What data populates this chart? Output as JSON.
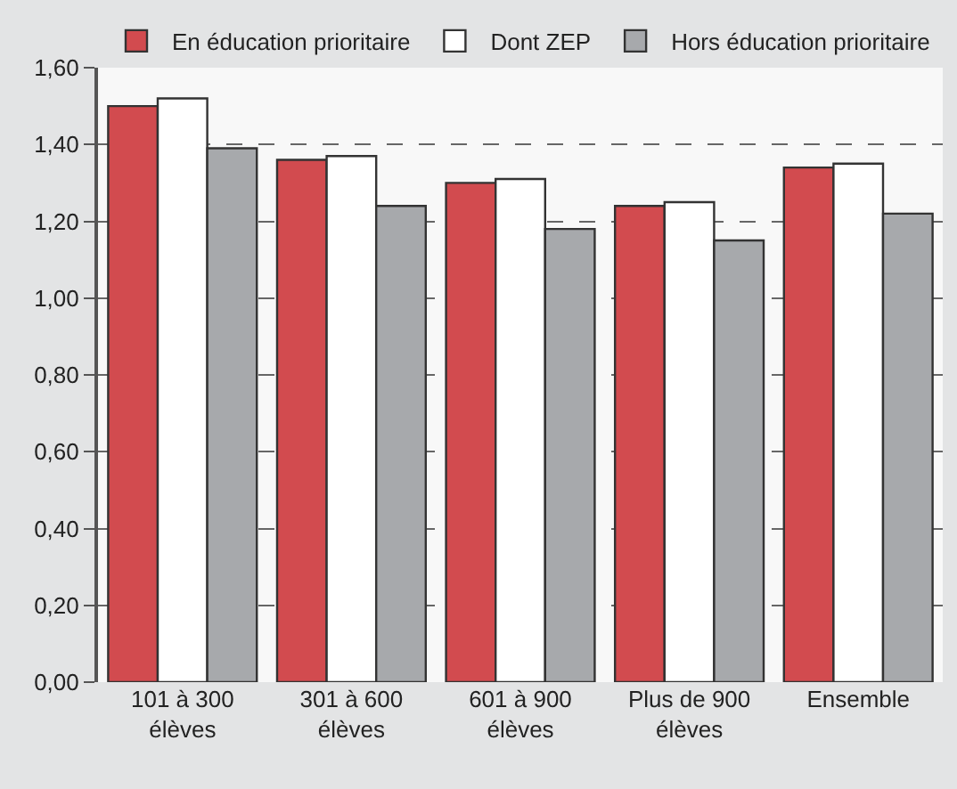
{
  "chart_data": {
    "type": "bar",
    "categories": [
      "101 à 300\nélèves",
      "301 à 600\nélèves",
      "601 à 900\nélèves",
      "Plus de 900\nélèves",
      "Ensemble"
    ],
    "series": [
      {
        "name": "En éducation prioritaire",
        "color": "#d24b4f",
        "values": [
          1.5,
          1.36,
          1.3,
          1.24,
          1.34
        ]
      },
      {
        "name": "Dont ZEP",
        "color": "#ffffff",
        "values": [
          1.52,
          1.37,
          1.31,
          1.25,
          1.35
        ]
      },
      {
        "name": "Hors éducation prioritaire",
        "color": "#a7a9ac",
        "values": [
          1.39,
          1.24,
          1.18,
          1.15,
          1.22
        ]
      }
    ],
    "ylim": [
      0,
      1.6
    ],
    "yticks": [
      {
        "value": 0,
        "label": "0,00"
      },
      {
        "value": 0.2,
        "label": "0,20"
      },
      {
        "value": 0.4,
        "label": "0,40"
      },
      {
        "value": 0.6,
        "label": "0,60"
      },
      {
        "value": 0.8,
        "label": "0,80"
      },
      {
        "value": 1.0,
        "label": "1,00"
      },
      {
        "value": 1.2,
        "label": "1,20"
      },
      {
        "value": 1.4,
        "label": "1,40"
      },
      {
        "value": 1.6,
        "label": "1,60"
      }
    ],
    "grid": "y",
    "legend": "top"
  }
}
